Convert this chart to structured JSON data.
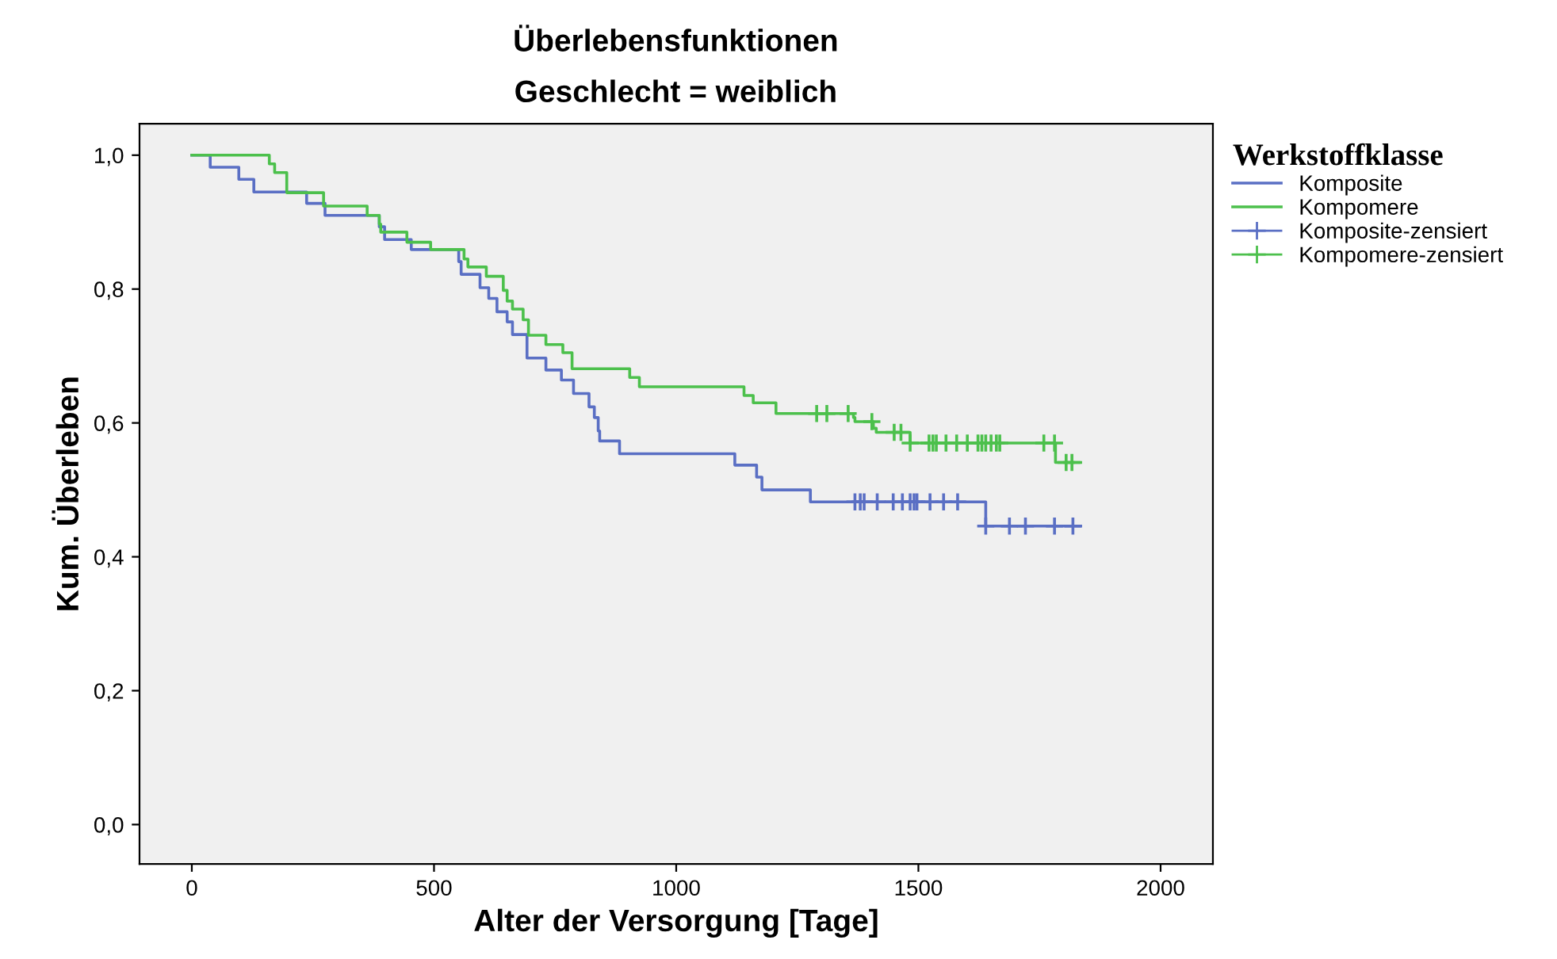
{
  "chart_data": {
    "type": "step",
    "title": "Überlebensfunktionen",
    "subtitle": "Geschlecht = weiblich",
    "xlabel": "Alter der Versorgung [Tage]",
    "ylabel": "Kum. Überleben",
    "legend_title": "Werkstoffklasse",
    "legend": "right",
    "grid": false,
    "xlim": [
      -108,
      2108
    ],
    "xticks": [
      0,
      500,
      1000,
      1500,
      2000
    ],
    "ylim": [
      -0.059,
      1.047
    ],
    "yticks": [
      {
        "value": 0,
        "label": "0,0"
      },
      {
        "value": 0.2,
        "label": "0,2"
      },
      {
        "value": 0.4,
        "label": "0,4"
      },
      {
        "value": 0.6,
        "label": "0,6"
      },
      {
        "value": 0.8,
        "label": "0,8"
      },
      {
        "value": 1.0,
        "label": "1,0"
      }
    ],
    "series": [
      {
        "name": "Komposite",
        "color": "#5a6fc4",
        "x": [
          0,
          38,
          97,
          128,
          237,
          275,
          387,
          398,
          453,
          551,
          556,
          595,
          613,
          630,
          651,
          662,
          692,
          731,
          763,
          788,
          820,
          831,
          839,
          842,
          883,
          1121,
          1166,
          1177,
          1277,
          1639,
          1835
        ],
        "values": [
          1.0,
          0.982,
          0.964,
          0.945,
          0.928,
          0.91,
          0.893,
          0.874,
          0.859,
          0.841,
          0.822,
          0.802,
          0.786,
          0.766,
          0.751,
          0.732,
          0.697,
          0.679,
          0.664,
          0.644,
          0.624,
          0.608,
          0.588,
          0.573,
          0.554,
          0.537,
          0.519,
          0.5,
          0.482,
          0.446,
          0.446
        ]
      },
      {
        "name": "Kompomere",
        "color": "#4cc04c",
        "x": [
          0,
          160,
          171,
          196,
          272,
          362,
          387,
          390,
          444,
          493,
          562,
          570,
          608,
          643,
          651,
          662,
          684,
          695,
          731,
          766,
          785,
          904,
          924,
          1140,
          1159,
          1206,
          1366,
          1369,
          1407,
          1413,
          1483,
          1783,
          1835
        ],
        "values": [
          1.0,
          0.987,
          0.974,
          0.944,
          0.924,
          0.91,
          0.897,
          0.885,
          0.87,
          0.859,
          0.845,
          0.833,
          0.819,
          0.798,
          0.782,
          0.77,
          0.754,
          0.731,
          0.717,
          0.705,
          0.681,
          0.668,
          0.654,
          0.641,
          0.63,
          0.614,
          0.608,
          0.602,
          0.592,
          0.586,
          0.57,
          0.541,
          0.541
        ]
      },
      {
        "name": "Komposite-zensiert",
        "type": "scatter",
        "marker": "cross",
        "color": "#5a6fc4",
        "x": [
          1369,
          1380,
          1388,
          1415,
          1448,
          1467,
          1483,
          1491,
          1497,
          1524,
          1552,
          1581,
          1639,
          1688,
          1721,
          1781,
          1819
        ],
        "values": [
          0.482,
          0.482,
          0.482,
          0.482,
          0.482,
          0.482,
          0.482,
          0.482,
          0.482,
          0.482,
          0.482,
          0.482,
          0.446,
          0.446,
          0.446,
          0.446,
          0.446
        ]
      },
      {
        "name": "Kompomere-zensiert",
        "type": "scatter",
        "marker": "cross",
        "color": "#4cc04c",
        "x": [
          1290,
          1311,
          1355,
          1404,
          1450,
          1464,
          1483,
          1522,
          1530,
          1537,
          1557,
          1579,
          1601,
          1623,
          1631,
          1639,
          1650,
          1661,
          1668,
          1759,
          1781,
          1805,
          1817
        ],
        "values": [
          0.614,
          0.614,
          0.614,
          0.602,
          0.586,
          0.586,
          0.57,
          0.57,
          0.57,
          0.57,
          0.57,
          0.57,
          0.57,
          0.57,
          0.57,
          0.57,
          0.57,
          0.57,
          0.57,
          0.57,
          0.57,
          0.541,
          0.541
        ]
      }
    ]
  }
}
